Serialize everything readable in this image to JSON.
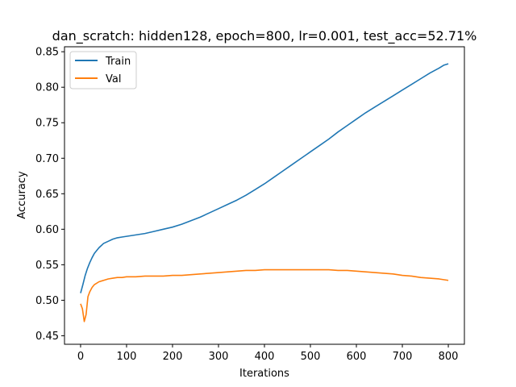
{
  "chart_data": {
    "type": "line",
    "title": "dan_scratch: hidden128, epoch=800, lr=0.001, test_acc=52.71%",
    "xlabel": "Iterations",
    "ylabel": "Accuracy",
    "xlim": [
      -35,
      835
    ],
    "ylim": [
      0.438,
      0.857
    ],
    "xticks": [
      0,
      100,
      200,
      300,
      400,
      500,
      600,
      700,
      800
    ],
    "yticks": [
      0.45,
      0.5,
      0.55,
      0.6,
      0.65,
      0.7,
      0.75,
      0.8,
      0.85
    ],
    "xtick_labels": [
      "0",
      "100",
      "200",
      "300",
      "400",
      "500",
      "600",
      "700",
      "800"
    ],
    "ytick_labels": [
      "0.45",
      "0.50",
      "0.55",
      "0.60",
      "0.65",
      "0.70",
      "0.75",
      "0.80",
      "0.85"
    ],
    "grid": false,
    "legend_position": "top-left",
    "series": [
      {
        "name": "Train",
        "color": "#1f77b4",
        "x": [
          0,
          5,
          10,
          15,
          20,
          25,
          30,
          40,
          50,
          60,
          70,
          80,
          90,
          100,
          120,
          140,
          160,
          180,
          200,
          220,
          240,
          260,
          280,
          300,
          320,
          340,
          360,
          380,
          400,
          420,
          440,
          460,
          480,
          500,
          520,
          540,
          560,
          580,
          600,
          620,
          640,
          660,
          680,
          700,
          720,
          740,
          760,
          780,
          790,
          800
        ],
        "y": [
          0.51,
          0.522,
          0.535,
          0.545,
          0.553,
          0.56,
          0.566,
          0.574,
          0.58,
          0.583,
          0.586,
          0.588,
          0.589,
          0.59,
          0.592,
          0.594,
          0.597,
          0.6,
          0.603,
          0.607,
          0.612,
          0.617,
          0.623,
          0.629,
          0.635,
          0.641,
          0.648,
          0.656,
          0.664,
          0.673,
          0.682,
          0.691,
          0.7,
          0.709,
          0.718,
          0.727,
          0.737,
          0.746,
          0.755,
          0.764,
          0.772,
          0.78,
          0.788,
          0.796,
          0.804,
          0.812,
          0.82,
          0.827,
          0.831,
          0.833
        ]
      },
      {
        "name": "Val",
        "color": "#ff7f0e",
        "x": [
          0,
          4,
          8,
          12,
          16,
          20,
          25,
          30,
          40,
          50,
          60,
          70,
          80,
          90,
          100,
          120,
          140,
          160,
          180,
          200,
          220,
          240,
          260,
          280,
          300,
          320,
          340,
          360,
          380,
          400,
          420,
          440,
          460,
          480,
          500,
          520,
          540,
          560,
          580,
          600,
          620,
          640,
          660,
          680,
          700,
          720,
          740,
          760,
          780,
          790,
          800
        ],
        "y": [
          0.495,
          0.488,
          0.47,
          0.48,
          0.505,
          0.512,
          0.518,
          0.522,
          0.526,
          0.528,
          0.53,
          0.531,
          0.532,
          0.532,
          0.533,
          0.533,
          0.534,
          0.534,
          0.534,
          0.535,
          0.535,
          0.536,
          0.537,
          0.538,
          0.539,
          0.54,
          0.541,
          0.542,
          0.542,
          0.543,
          0.543,
          0.543,
          0.543,
          0.543,
          0.543,
          0.543,
          0.543,
          0.542,
          0.542,
          0.541,
          0.54,
          0.539,
          0.538,
          0.537,
          0.535,
          0.534,
          0.532,
          0.531,
          0.53,
          0.529,
          0.528
        ]
      }
    ]
  }
}
